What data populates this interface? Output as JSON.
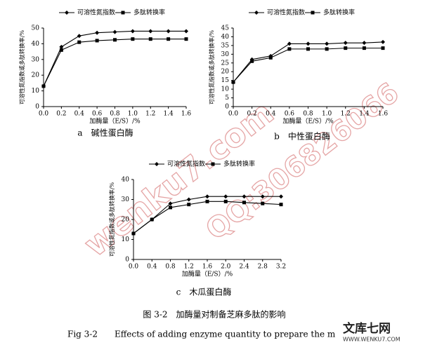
{
  "chart_data": [
    {
      "type": "line",
      "caption": "a　碱性蛋白酶",
      "x_label": "加酶量（E/S）/%",
      "y_label": "可溶性氮指数或多肽转换率/%",
      "x": [
        0,
        0.2,
        0.4,
        0.6,
        0.8,
        1.0,
        1.2,
        1.4,
        1.6
      ],
      "series": [
        {
          "name": "可溶性氮指数",
          "color": "#000000",
          "marker": "diamond",
          "values": [
            13,
            38,
            45,
            47,
            47.5,
            48,
            48,
            48,
            48
          ]
        },
        {
          "name": "多肽转换率",
          "color": "#000000",
          "marker": "square",
          "values": [
            13,
            36,
            41,
            42,
            42.5,
            43,
            43,
            43,
            43
          ]
        }
      ],
      "xlim": [
        0,
        1.6
      ],
      "ylim": [
        0,
        50
      ],
      "xticks": [
        {
          "value": 0,
          "label": "0.0"
        },
        {
          "value": 0.2,
          "label": "0.2"
        },
        {
          "value": 0.4,
          "label": "0.4"
        },
        {
          "value": 0.6,
          "label": "0.6"
        },
        {
          "value": 0.8,
          "label": "0.8"
        },
        {
          "value": 1.0,
          "label": "1.0"
        },
        {
          "value": 1.2,
          "label": "1.2"
        },
        {
          "value": 1.4,
          "label": "1.4"
        },
        {
          "value": 1.6,
          "label": "1.6"
        }
      ],
      "yticks": [
        0,
        10,
        20,
        30,
        40,
        50
      ],
      "legend": "top"
    },
    {
      "type": "line",
      "caption": "b　中性蛋白酶",
      "x_label": "加酶量（E/S）/%",
      "y_label": "可溶性氮指数或多肽转换率/%",
      "x": [
        0,
        0.2,
        0.4,
        0.6,
        0.8,
        1.0,
        1.2,
        1.4,
        1.6
      ],
      "series": [
        {
          "name": "可溶性氮指数",
          "color": "#000000",
          "marker": "diamond",
          "values": [
            14,
            27,
            29,
            36,
            36,
            36,
            36.5,
            36.5,
            37
          ]
        },
        {
          "name": "多肽转换率",
          "color": "#000000",
          "marker": "square",
          "values": [
            14,
            26,
            28,
            33,
            33,
            33,
            33.5,
            33.5,
            33.5
          ]
        }
      ],
      "xlim": [
        0,
        1.6
      ],
      "ylim": [
        0,
        45
      ],
      "xticks": [
        {
          "value": 0,
          "label": "0.0"
        },
        {
          "value": 0.2,
          "label": "0.2"
        },
        {
          "value": 0.4,
          "label": "0.4"
        },
        {
          "value": 0.6,
          "label": "0.6"
        },
        {
          "value": 0.8,
          "label": "0.8"
        },
        {
          "value": 1.0,
          "label": "1.0"
        },
        {
          "value": 1.2,
          "label": "1.2"
        },
        {
          "value": 1.4,
          "label": "1.4"
        },
        {
          "value": 1.6,
          "label": "1.6"
        }
      ],
      "yticks": [
        0,
        5,
        10,
        15,
        20,
        25,
        30,
        35,
        40,
        45
      ],
      "legend": "top"
    },
    {
      "type": "line",
      "caption": "c　木瓜蛋白酶",
      "x_label": "加酶量（E/S）/%",
      "y_label": "可溶性氮指数或多肽转换率/%",
      "x": [
        0,
        0.4,
        0.8,
        1.2,
        1.6,
        2.0,
        2.4,
        2.8,
        3.2
      ],
      "series": [
        {
          "name": "可溶性氮指数",
          "color": "#000000",
          "marker": "diamond",
          "values": [
            13,
            20,
            28,
            30,
            31.5,
            31.5,
            31.5,
            31.5,
            31.5
          ]
        },
        {
          "name": "多肽转换率",
          "color": "#000000",
          "marker": "square",
          "values": [
            13,
            20,
            26,
            27.5,
            29,
            29,
            28.5,
            28,
            27.5
          ]
        }
      ],
      "xlim": [
        0,
        3.2
      ],
      "ylim": [
        0,
        40
      ],
      "xticks": [
        {
          "value": 0,
          "label": "0.0"
        },
        {
          "value": 0.4,
          "label": "0.4"
        },
        {
          "value": 0.8,
          "label": "0.8"
        },
        {
          "value": 1.2,
          "label": "1.2"
        },
        {
          "value": 1.6,
          "label": "1.6"
        },
        {
          "value": 2.0,
          "label": "2.0"
        },
        {
          "value": 2.4,
          "label": "2.4"
        },
        {
          "value": 2.8,
          "label": "2.8"
        },
        {
          "value": 3.2,
          "label": "3.2"
        }
      ],
      "yticks": [
        0,
        10,
        20,
        30,
        40
      ],
      "legend": "top"
    }
  ],
  "figure_caption_cn": "图 3-2　加酶量对制备芝麻多肽的影响",
  "figure_caption_en": "Fig 3-2　　Effects of adding enzyme quantity to prepare the m",
  "watermark_url": "wenku7.com",
  "watermark_qq": "QQ:306826066",
  "logo_name": "文库七网",
  "logo_url": "WWW.WENKU7.COM"
}
